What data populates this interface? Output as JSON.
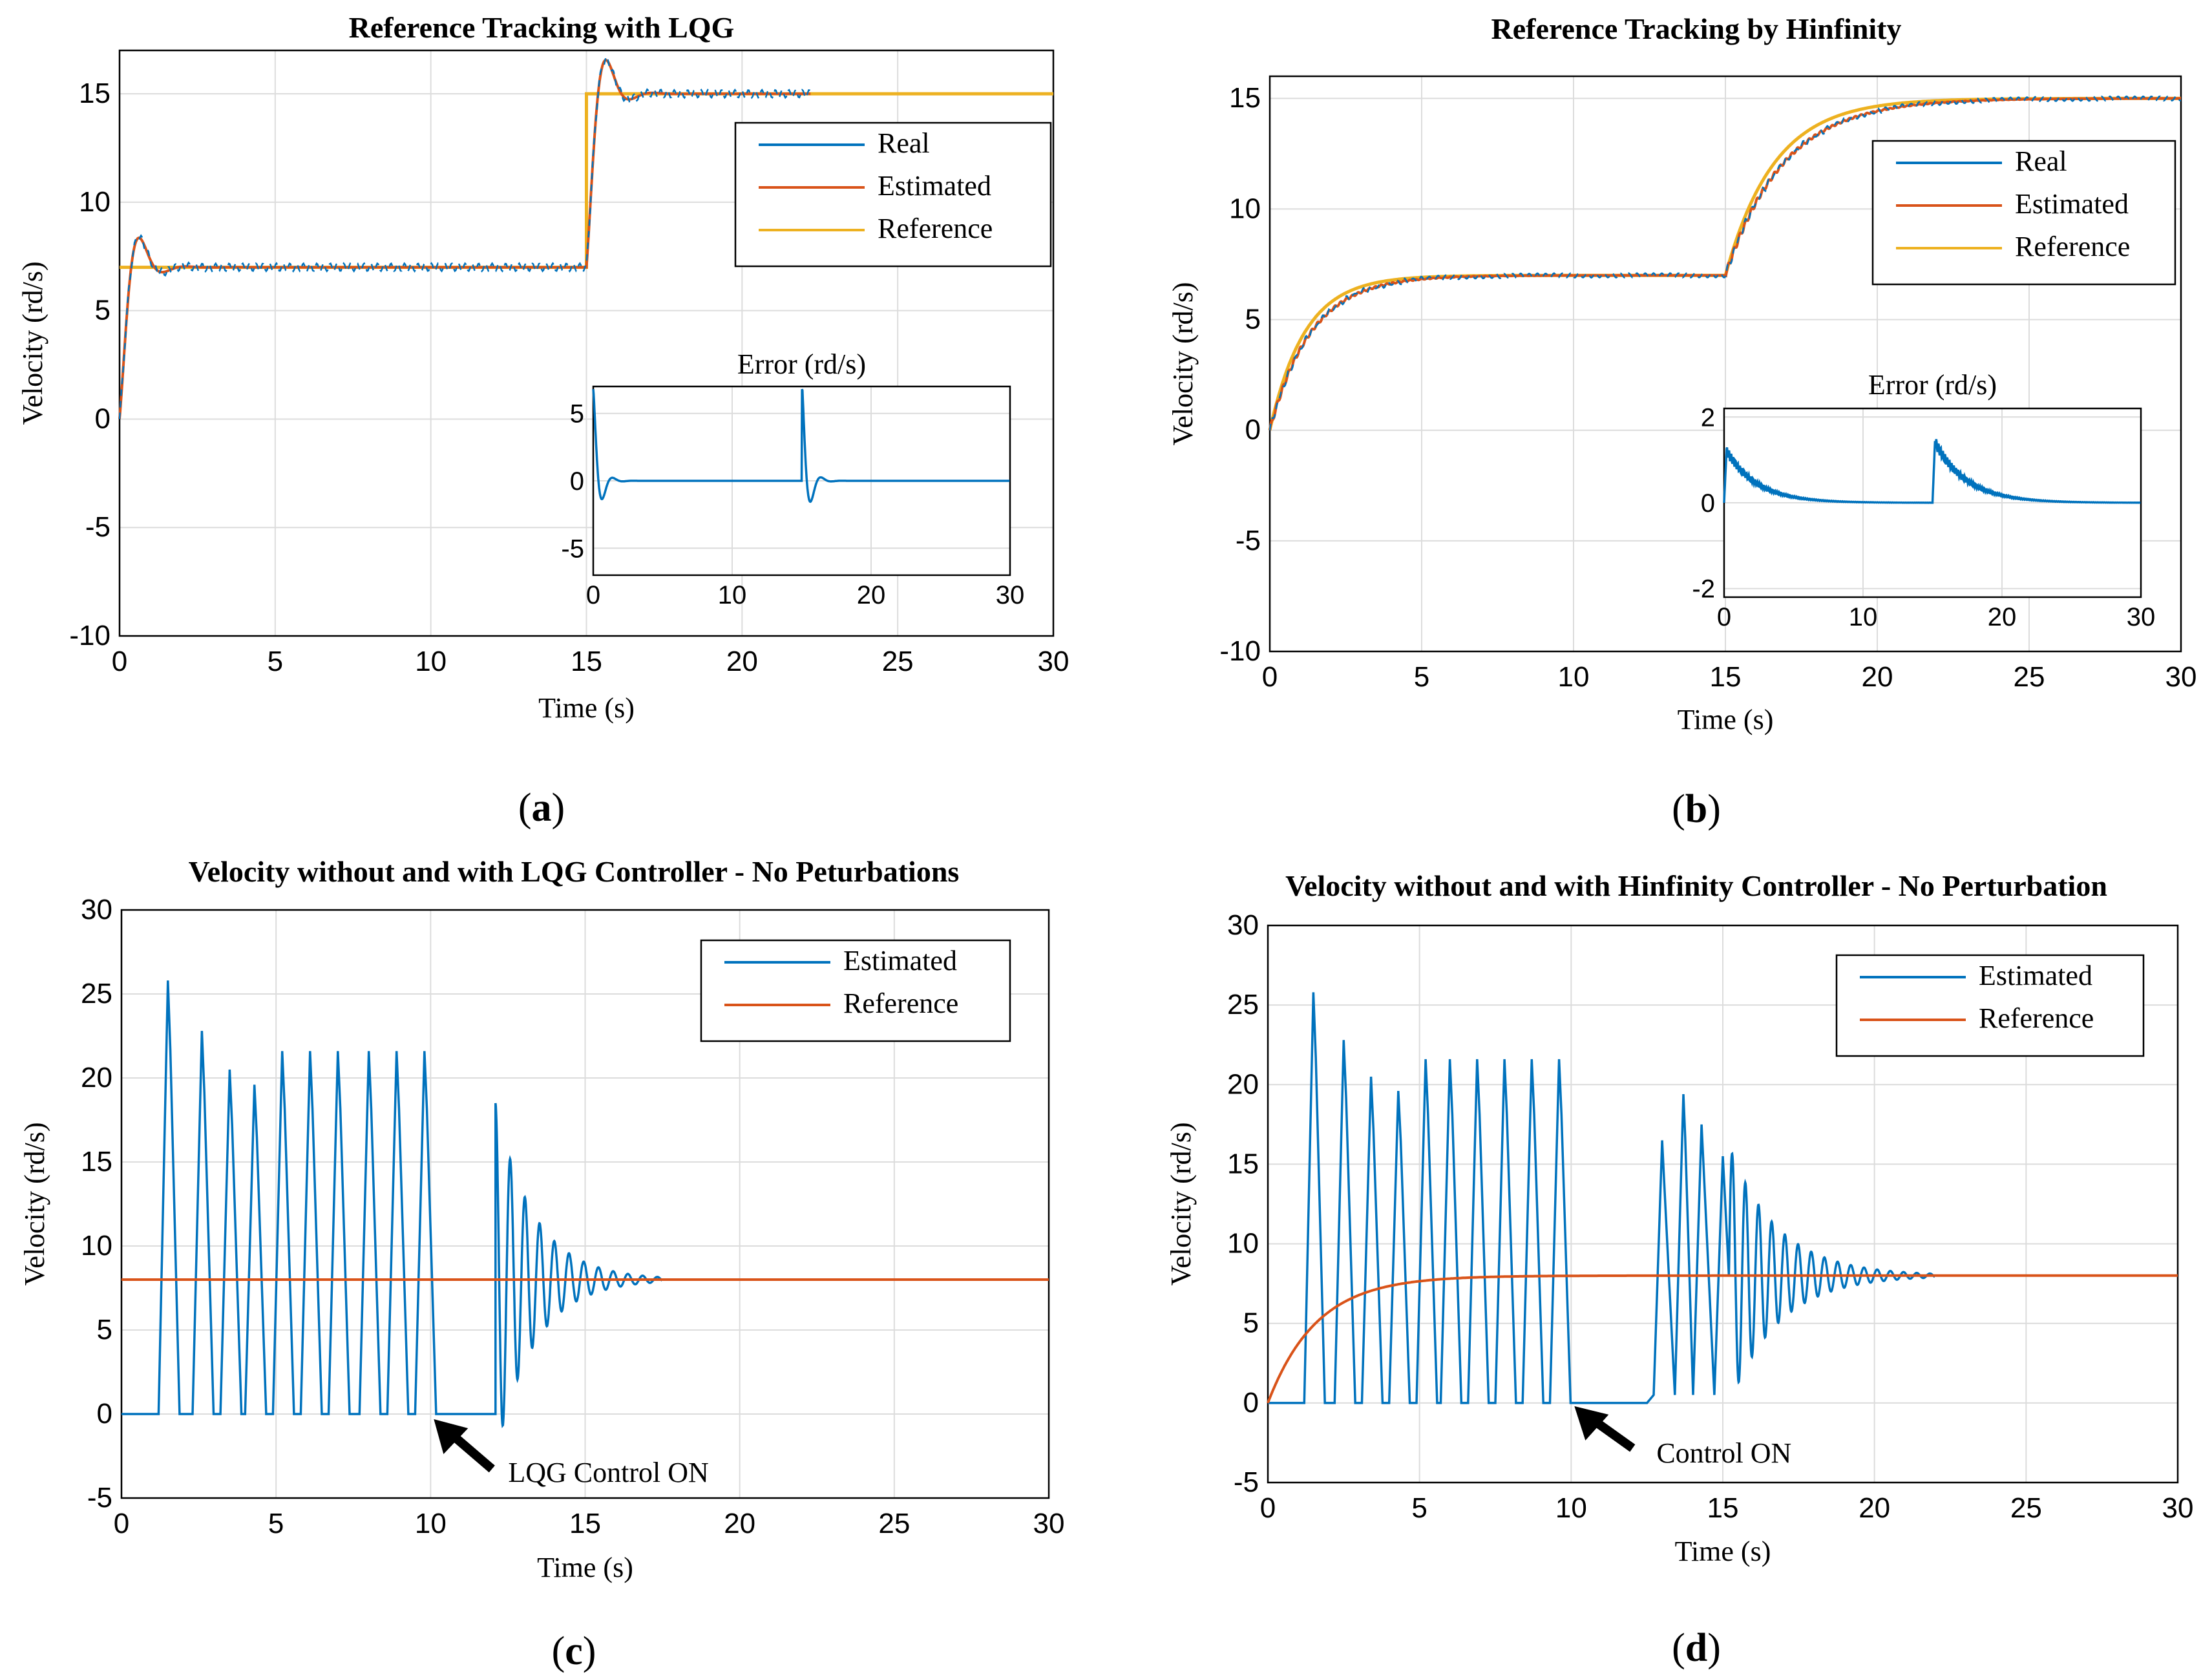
{
  "colors": {
    "real": "#0072BD",
    "estimated": "#D95319",
    "reference": "#EDB120",
    "grid": "#dcdcdc",
    "frame": "#000000"
  },
  "chart_data": [
    {
      "id": "a",
      "type": "line",
      "title": "Reference Tracking with LQG",
      "xlabel": "Time (s)",
      "ylabel": "Velocity (rd/s)",
      "xlim": [
        0,
        30
      ],
      "ylim": [
        -10,
        17
      ],
      "xticks": [
        "0",
        "5",
        "10",
        "15",
        "20",
        "25",
        "30"
      ],
      "yticks": [
        "-10",
        "-5",
        "0",
        "5",
        "10",
        "15"
      ],
      "legend": [
        "Real",
        "Estimated",
        "Reference"
      ],
      "caption_open": "(",
      "caption_letter": "a",
      "caption_close": ")",
      "inset": {
        "title": "Error (rd/s)",
        "xlim": [
          0,
          30
        ],
        "ylim": [
          -7,
          7
        ],
        "xticks": [
          "0",
          "10",
          "20",
          "30"
        ],
        "yticks": [
          "5",
          "0",
          "-5"
        ]
      }
    },
    {
      "id": "b",
      "type": "line",
      "title": "Reference Tracking by Hinfinity",
      "xlabel": "Time (s)",
      "ylabel": "Velocity (rd/s)",
      "xlim": [
        0,
        30
      ],
      "ylim": [
        -10,
        16
      ],
      "xticks": [
        "0",
        "5",
        "10",
        "15",
        "20",
        "25",
        "30"
      ],
      "yticks": [
        "-10",
        "-5",
        "0",
        "5",
        "10",
        "15"
      ],
      "legend": [
        "Real",
        "Estimated",
        "Reference"
      ],
      "caption_open": "(",
      "caption_letter": "b",
      "caption_close": ")",
      "inset": {
        "title": "Error (rd/s)",
        "xlim": [
          0,
          30
        ],
        "ylim": [
          -2.2,
          2.2
        ],
        "xticks": [
          "0",
          "10",
          "20",
          "30"
        ],
        "yticks": [
          "2",
          "0",
          "-2"
        ]
      }
    },
    {
      "id": "c",
      "type": "line",
      "title": "Velocity without and with LQG Controller - No Peturbations",
      "xlabel": "Time (s)",
      "ylabel": "Velocity (rd/s)",
      "xlim": [
        0,
        30
      ],
      "ylim": [
        -5,
        30
      ],
      "xticks": [
        "0",
        "5",
        "10",
        "15",
        "20",
        "25",
        "30"
      ],
      "yticks": [
        "-5",
        "0",
        "5",
        "10",
        "15",
        "20",
        "25",
        "30"
      ],
      "legend": [
        "Estimated",
        "Reference"
      ],
      "reference_value": 8,
      "annotation": "LQG Control ON",
      "annotation_x": 10,
      "caption_open": "(",
      "caption_letter": "c",
      "caption_close": ")"
    },
    {
      "id": "d",
      "type": "line",
      "title": "Velocity without and with Hinfinity Controller - No Perturbation",
      "xlabel": "Time (s)",
      "ylabel": "Velocity (rd/s)",
      "xlim": [
        0,
        30
      ],
      "ylim": [
        -5,
        30
      ],
      "xticks": [
        "0",
        "5",
        "10",
        "15",
        "20",
        "25",
        "30"
      ],
      "yticks": [
        "-5",
        "0",
        "5",
        "10",
        "15",
        "20",
        "25",
        "30"
      ],
      "legend": [
        "Estimated",
        "Reference"
      ],
      "reference_value": 8,
      "annotation": "Control ON",
      "annotation_x": 10,
      "caption_open": "(",
      "caption_letter": "d",
      "caption_close": ")"
    }
  ]
}
